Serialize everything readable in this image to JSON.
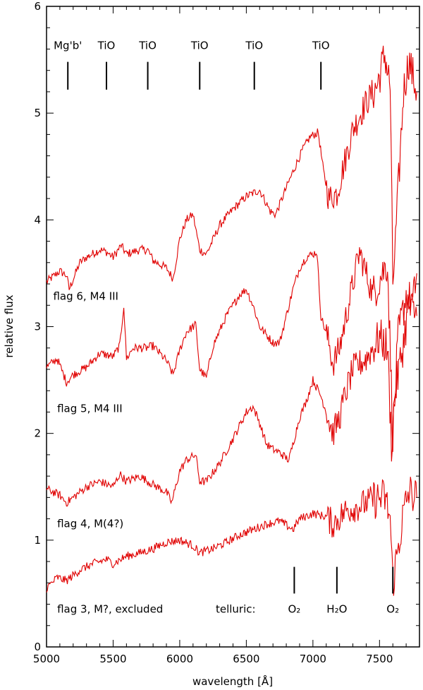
{
  "chart_data": {
    "type": "line",
    "xlabel": "wavelength [Å]",
    "ylabel": "relative flux",
    "xlim": [
      5000,
      7800
    ],
    "ylim": [
      0,
      6
    ],
    "x_ticks": [
      5000,
      5500,
      6000,
      6500,
      7000,
      7500
    ],
    "y_ticks": [
      0,
      1,
      2,
      3,
      4,
      5,
      6
    ],
    "line_color": "#e00000",
    "series": [
      {
        "label": "flag 6, M4 III",
        "label_pos": [
          5050,
          3.25
        ],
        "points": [
          [
            5000,
            3.42
          ],
          [
            5100,
            3.52
          ],
          [
            5150,
            3.48
          ],
          [
            5170,
            3.35
          ],
          [
            5250,
            3.6
          ],
          [
            5300,
            3.65
          ],
          [
            5400,
            3.72
          ],
          [
            5450,
            3.7
          ],
          [
            5500,
            3.65
          ],
          [
            5560,
            3.76
          ],
          [
            5600,
            3.68
          ],
          [
            5700,
            3.72
          ],
          [
            5760,
            3.72
          ],
          [
            5800,
            3.62
          ],
          [
            5900,
            3.55
          ],
          [
            5950,
            3.45
          ],
          [
            6000,
            3.82
          ],
          [
            6050,
            4.0
          ],
          [
            6100,
            4.05
          ],
          [
            6150,
            3.72
          ],
          [
            6200,
            3.68
          ],
          [
            6300,
            3.95
          ],
          [
            6400,
            4.1
          ],
          [
            6500,
            4.22
          ],
          [
            6600,
            4.28
          ],
          [
            6680,
            4.08
          ],
          [
            6720,
            4.05
          ],
          [
            6800,
            4.3
          ],
          [
            6850,
            4.45
          ],
          [
            6920,
            4.65
          ],
          [
            6980,
            4.78
          ],
          [
            7040,
            4.82
          ],
          [
            7080,
            4.45
          ],
          [
            7120,
            4.2
          ],
          [
            7180,
            4.25
          ],
          [
            7240,
            4.55
          ],
          [
            7300,
            4.85
          ],
          [
            7400,
            5.1
          ],
          [
            7480,
            5.25
          ],
          [
            7540,
            5.55
          ],
          [
            7580,
            5.25
          ],
          [
            7600,
            3.4
          ],
          [
            7620,
            3.8
          ],
          [
            7680,
            5.2
          ],
          [
            7720,
            5.5
          ],
          [
            7780,
            5.2
          ]
        ]
      },
      {
        "label": "flag 5, M4 III",
        "label_pos": [
          5080,
          2.2
        ],
        "points": [
          [
            5000,
            2.62
          ],
          [
            5080,
            2.7
          ],
          [
            5150,
            2.48
          ],
          [
            5200,
            2.55
          ],
          [
            5300,
            2.62
          ],
          [
            5400,
            2.75
          ],
          [
            5500,
            2.72
          ],
          [
            5550,
            2.82
          ],
          [
            5580,
            3.2
          ],
          [
            5600,
            2.7
          ],
          [
            5650,
            2.8
          ],
          [
            5750,
            2.8
          ],
          [
            5800,
            2.82
          ],
          [
            5900,
            2.68
          ],
          [
            5950,
            2.55
          ],
          [
            6000,
            2.78
          ],
          [
            6050,
            2.95
          ],
          [
            6120,
            3.02
          ],
          [
            6150,
            2.6
          ],
          [
            6200,
            2.52
          ],
          [
            6250,
            2.82
          ],
          [
            6350,
            3.1
          ],
          [
            6450,
            3.3
          ],
          [
            6500,
            3.35
          ],
          [
            6550,
            3.2
          ],
          [
            6600,
            3.0
          ],
          [
            6700,
            2.85
          ],
          [
            6750,
            2.85
          ],
          [
            6800,
            3.1
          ],
          [
            6850,
            3.35
          ],
          [
            6900,
            3.55
          ],
          [
            6950,
            3.65
          ],
          [
            7030,
            3.7
          ],
          [
            7060,
            3.1
          ],
          [
            7120,
            2.85
          ],
          [
            7150,
            2.65
          ],
          [
            7200,
            2.8
          ],
          [
            7300,
            3.4
          ],
          [
            7350,
            3.7
          ],
          [
            7450,
            3.3
          ],
          [
            7500,
            3.45
          ],
          [
            7560,
            3.6
          ],
          [
            7600,
            2.0
          ],
          [
            7640,
            2.9
          ],
          [
            7700,
            3.3
          ],
          [
            7750,
            3.2
          ],
          [
            7780,
            3.5
          ]
        ]
      },
      {
        "label": "flag 4, M(4?)",
        "label_pos": [
          5080,
          1.12
        ],
        "points": [
          [
            5000,
            1.48
          ],
          [
            5100,
            1.42
          ],
          [
            5150,
            1.35
          ],
          [
            5250,
            1.45
          ],
          [
            5300,
            1.5
          ],
          [
            5400,
            1.55
          ],
          [
            5500,
            1.5
          ],
          [
            5550,
            1.62
          ],
          [
            5600,
            1.55
          ],
          [
            5700,
            1.6
          ],
          [
            5800,
            1.52
          ],
          [
            5900,
            1.45
          ],
          [
            5940,
            1.35
          ],
          [
            6000,
            1.65
          ],
          [
            6050,
            1.75
          ],
          [
            6120,
            1.8
          ],
          [
            6150,
            1.55
          ],
          [
            6200,
            1.55
          ],
          [
            6300,
            1.72
          ],
          [
            6400,
            1.95
          ],
          [
            6500,
            2.2
          ],
          [
            6550,
            2.25
          ],
          [
            6600,
            2.1
          ],
          [
            6650,
            1.9
          ],
          [
            6700,
            1.85
          ],
          [
            6750,
            1.82
          ],
          [
            6820,
            1.75
          ],
          [
            6860,
            1.95
          ],
          [
            6900,
            2.15
          ],
          [
            6950,
            2.3
          ],
          [
            7000,
            2.5
          ],
          [
            7060,
            2.35
          ],
          [
            7100,
            2.2
          ],
          [
            7150,
            2.0
          ],
          [
            7200,
            2.15
          ],
          [
            7250,
            2.4
          ],
          [
            7300,
            2.6
          ],
          [
            7400,
            2.7
          ],
          [
            7500,
            2.9
          ],
          [
            7560,
            2.8
          ],
          [
            7590,
            1.9
          ],
          [
            7620,
            2.4
          ],
          [
            7680,
            2.85
          ],
          [
            7720,
            3.2
          ],
          [
            7780,
            3.1
          ]
        ]
      },
      {
        "label": "flag 3, M?, excluded",
        "label_pos": [
          5080,
          0.32
        ],
        "points": [
          [
            5000,
            0.55
          ],
          [
            5080,
            0.65
          ],
          [
            5150,
            0.62
          ],
          [
            5250,
            0.72
          ],
          [
            5350,
            0.78
          ],
          [
            5450,
            0.82
          ],
          [
            5500,
            0.78
          ],
          [
            5600,
            0.85
          ],
          [
            5700,
            0.88
          ],
          [
            5800,
            0.92
          ],
          [
            5900,
            0.98
          ],
          [
            6000,
            1.0
          ],
          [
            6100,
            0.95
          ],
          [
            6150,
            0.88
          ],
          [
            6250,
            0.92
          ],
          [
            6350,
            0.98
          ],
          [
            6450,
            1.05
          ],
          [
            6550,
            1.1
          ],
          [
            6650,
            1.15
          ],
          [
            6750,
            1.18
          ],
          [
            6850,
            1.1
          ],
          [
            6900,
            1.2
          ],
          [
            7000,
            1.25
          ],
          [
            7100,
            1.22
          ],
          [
            7150,
            1.15
          ],
          [
            7250,
            1.28
          ],
          [
            7350,
            1.32
          ],
          [
            7450,
            1.38
          ],
          [
            7540,
            1.4
          ],
          [
            7580,
            1.2
          ],
          [
            7600,
            0.6
          ],
          [
            7630,
            0.85
          ],
          [
            7680,
            1.25
          ],
          [
            7720,
            1.45
          ],
          [
            7780,
            1.4
          ]
        ]
      }
    ]
  },
  "labels_top": [
    {
      "text": "Mg'b'",
      "x": 5160
    },
    {
      "text": "TiO",
      "x": 5450
    },
    {
      "text": "TiO",
      "x": 5760
    },
    {
      "text": "TiO",
      "x": 6150
    },
    {
      "text": "TiO",
      "x": 6560
    },
    {
      "text": "TiO",
      "x": 7060
    }
  ],
  "telluric": {
    "title": "telluric:",
    "title_x": 6420,
    "marks": [
      {
        "text": "O₂",
        "x": 6860
      },
      {
        "text": "H₂O",
        "x": 7180
      },
      {
        "text": "O₂",
        "x": 7600
      }
    ]
  }
}
